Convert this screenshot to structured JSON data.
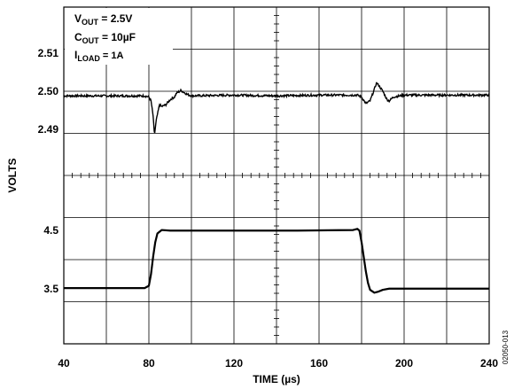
{
  "chart_data": [
    {
      "type": "line",
      "panel": "upper",
      "title": "",
      "xlabel": "TIME (µs)",
      "ylabel": "VOLTS",
      "annotation": [
        {
          "main": "V",
          "sub": "OUT",
          "rest": " = 2.5V"
        },
        {
          "main": "C",
          "sub": "OUT",
          "rest": " = 10µF"
        },
        {
          "main": "I",
          "sub": "LOAD",
          "rest": " = 1A"
        }
      ],
      "y_ticks": [
        {
          "value": 2.51,
          "label": "2.51"
        },
        {
          "value": 2.5,
          "label": "2.50"
        },
        {
          "value": 2.49,
          "label": "2.49"
        }
      ],
      "ylim": [
        2.478,
        2.522
      ],
      "grid": true,
      "series": [
        {
          "x": [
            40,
            78,
            80,
            81,
            82,
            82.6,
            83.5,
            85,
            86,
            88,
            90,
            92,
            93,
            95,
            98,
            100,
            120,
            140,
            160,
            178,
            180,
            182,
            184,
            186,
            187,
            188,
            190,
            192,
            193,
            195,
            200,
            240
          ],
          "y": [
            2.4988,
            2.4988,
            2.4985,
            2.4975,
            2.4935,
            2.4885,
            2.4925,
            2.4965,
            2.496,
            2.4965,
            2.4978,
            2.4985,
            2.4995,
            2.5002,
            2.4992,
            2.4988,
            2.499,
            2.4988,
            2.499,
            2.499,
            2.4985,
            2.4968,
            2.4975,
            2.5005,
            2.5022,
            2.5016,
            2.5,
            2.4978,
            2.4975,
            2.4985,
            2.499,
            2.499
          ]
        }
      ]
    },
    {
      "type": "line",
      "panel": "lower",
      "y_ticks": [
        {
          "value": 4.5,
          "label": "4.5"
        },
        {
          "value": 3.5,
          "label": "3.5"
        }
      ],
      "ylim": [
        2.55,
        5.45
      ],
      "grid": true,
      "series": [
        {
          "x": [
            40,
            78,
            80,
            81,
            82,
            83,
            84,
            86,
            90,
            120,
            150,
            176,
            178,
            179,
            180,
            181,
            182,
            183,
            184,
            186,
            188,
            190,
            193,
            196,
            240
          ],
          "y": [
            3.51,
            3.51,
            3.55,
            3.75,
            4.05,
            4.3,
            4.45,
            4.51,
            4.5,
            4.5,
            4.5,
            4.51,
            4.53,
            4.5,
            4.3,
            4.05,
            3.8,
            3.6,
            3.48,
            3.43,
            3.45,
            3.48,
            3.5,
            3.5,
            3.5
          ]
        }
      ]
    }
  ],
  "x_axis": {
    "ticks": [
      40,
      80,
      120,
      160,
      200,
      240
    ],
    "tick_labels": [
      "40",
      "80",
      "120",
      "160",
      "200",
      "240"
    ],
    "xlim": [
      40,
      240
    ]
  },
  "figure_id": "02050-013",
  "colors": {
    "line": "#000000",
    "grid": "#000000",
    "background": "#ffffff"
  }
}
